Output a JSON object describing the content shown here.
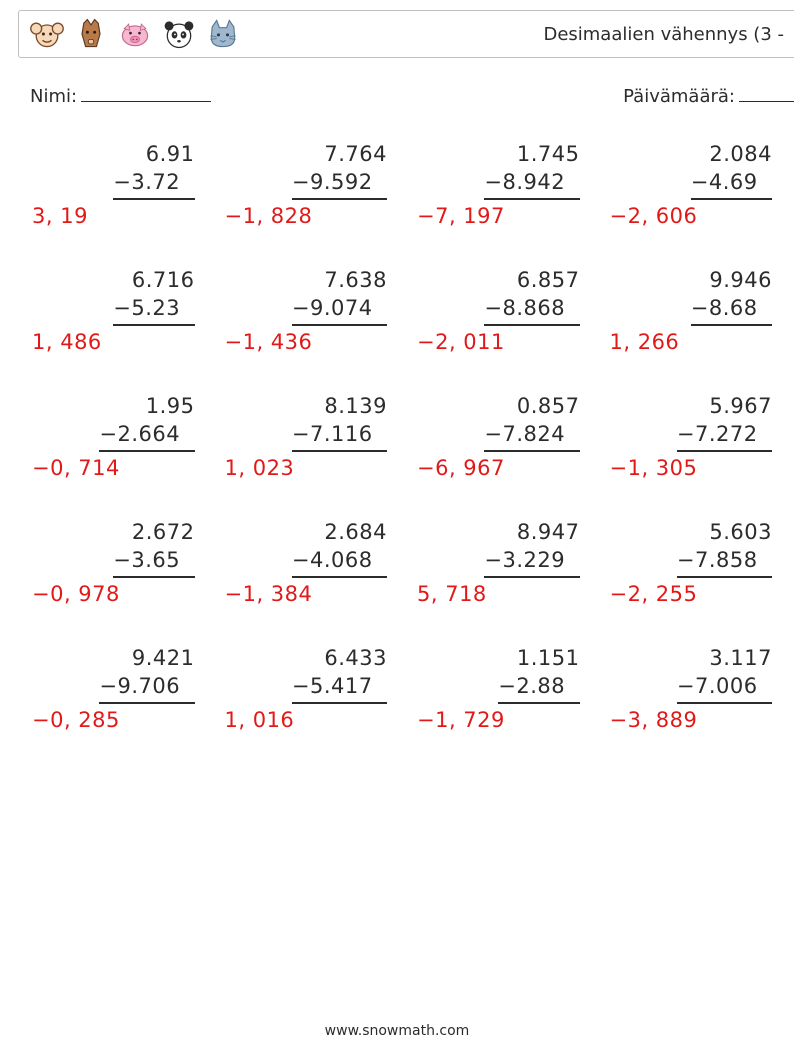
{
  "header": {
    "title": "Desimaalien vähennys (3 -",
    "title_fontsize": 18,
    "title_color": "#2c2c2c",
    "border_color": "#bfbfbf"
  },
  "icons": [
    "monkey",
    "horse",
    "pig",
    "panda",
    "cat"
  ],
  "meta": {
    "name_label": "Nimi:",
    "date_label": "Päivämäärä:"
  },
  "worksheet": {
    "type": "subtraction-column",
    "rows": 5,
    "cols": 4,
    "number_color": "#2c2c2c",
    "answer_color": "#e11919",
    "rule_color": "#2c2c2c",
    "fontsize": 21,
    "problems": [
      {
        "a": "6.91",
        "b": "−3.72",
        "ans": "3, 19"
      },
      {
        "a": "7.764",
        "b": "−9.592",
        "ans": "−1, 828"
      },
      {
        "a": "1.745",
        "b": "−8.942",
        "ans": "−7, 197"
      },
      {
        "a": "2.084",
        "b": "−4.69",
        "ans": "−2, 606"
      },
      {
        "a": "6.716",
        "b": "−5.23",
        "ans": "1, 486"
      },
      {
        "a": "7.638",
        "b": "−9.074",
        "ans": "−1, 436"
      },
      {
        "a": "6.857",
        "b": "−8.868",
        "ans": "−2, 011"
      },
      {
        "a": "9.946",
        "b": "−8.68",
        "ans": "1, 266"
      },
      {
        "a": "1.95",
        "b": "−2.664",
        "ans": "−0, 714"
      },
      {
        "a": "8.139",
        "b": "−7.116",
        "ans": "1, 023"
      },
      {
        "a": "0.857",
        "b": "−7.824",
        "ans": "−6, 967"
      },
      {
        "a": "5.967",
        "b": "−7.272",
        "ans": "−1, 305"
      },
      {
        "a": "2.672",
        "b": "−3.65",
        "ans": "−0, 978"
      },
      {
        "a": "2.684",
        "b": "−4.068",
        "ans": "−1, 384"
      },
      {
        "a": "8.947",
        "b": "−3.229",
        "ans": "5, 718"
      },
      {
        "a": "5.603",
        "b": "−7.858",
        "ans": "−2, 255"
      },
      {
        "a": "9.421",
        "b": "−9.706",
        "ans": "−0, 285"
      },
      {
        "a": "6.433",
        "b": "−5.417",
        "ans": "1, 016"
      },
      {
        "a": "1.151",
        "b": "−2.88",
        "ans": "−1, 729"
      },
      {
        "a": "3.117",
        "b": "−7.006",
        "ans": "−3, 889"
      }
    ]
  },
  "footer": {
    "text": "www.snowmath.com"
  }
}
